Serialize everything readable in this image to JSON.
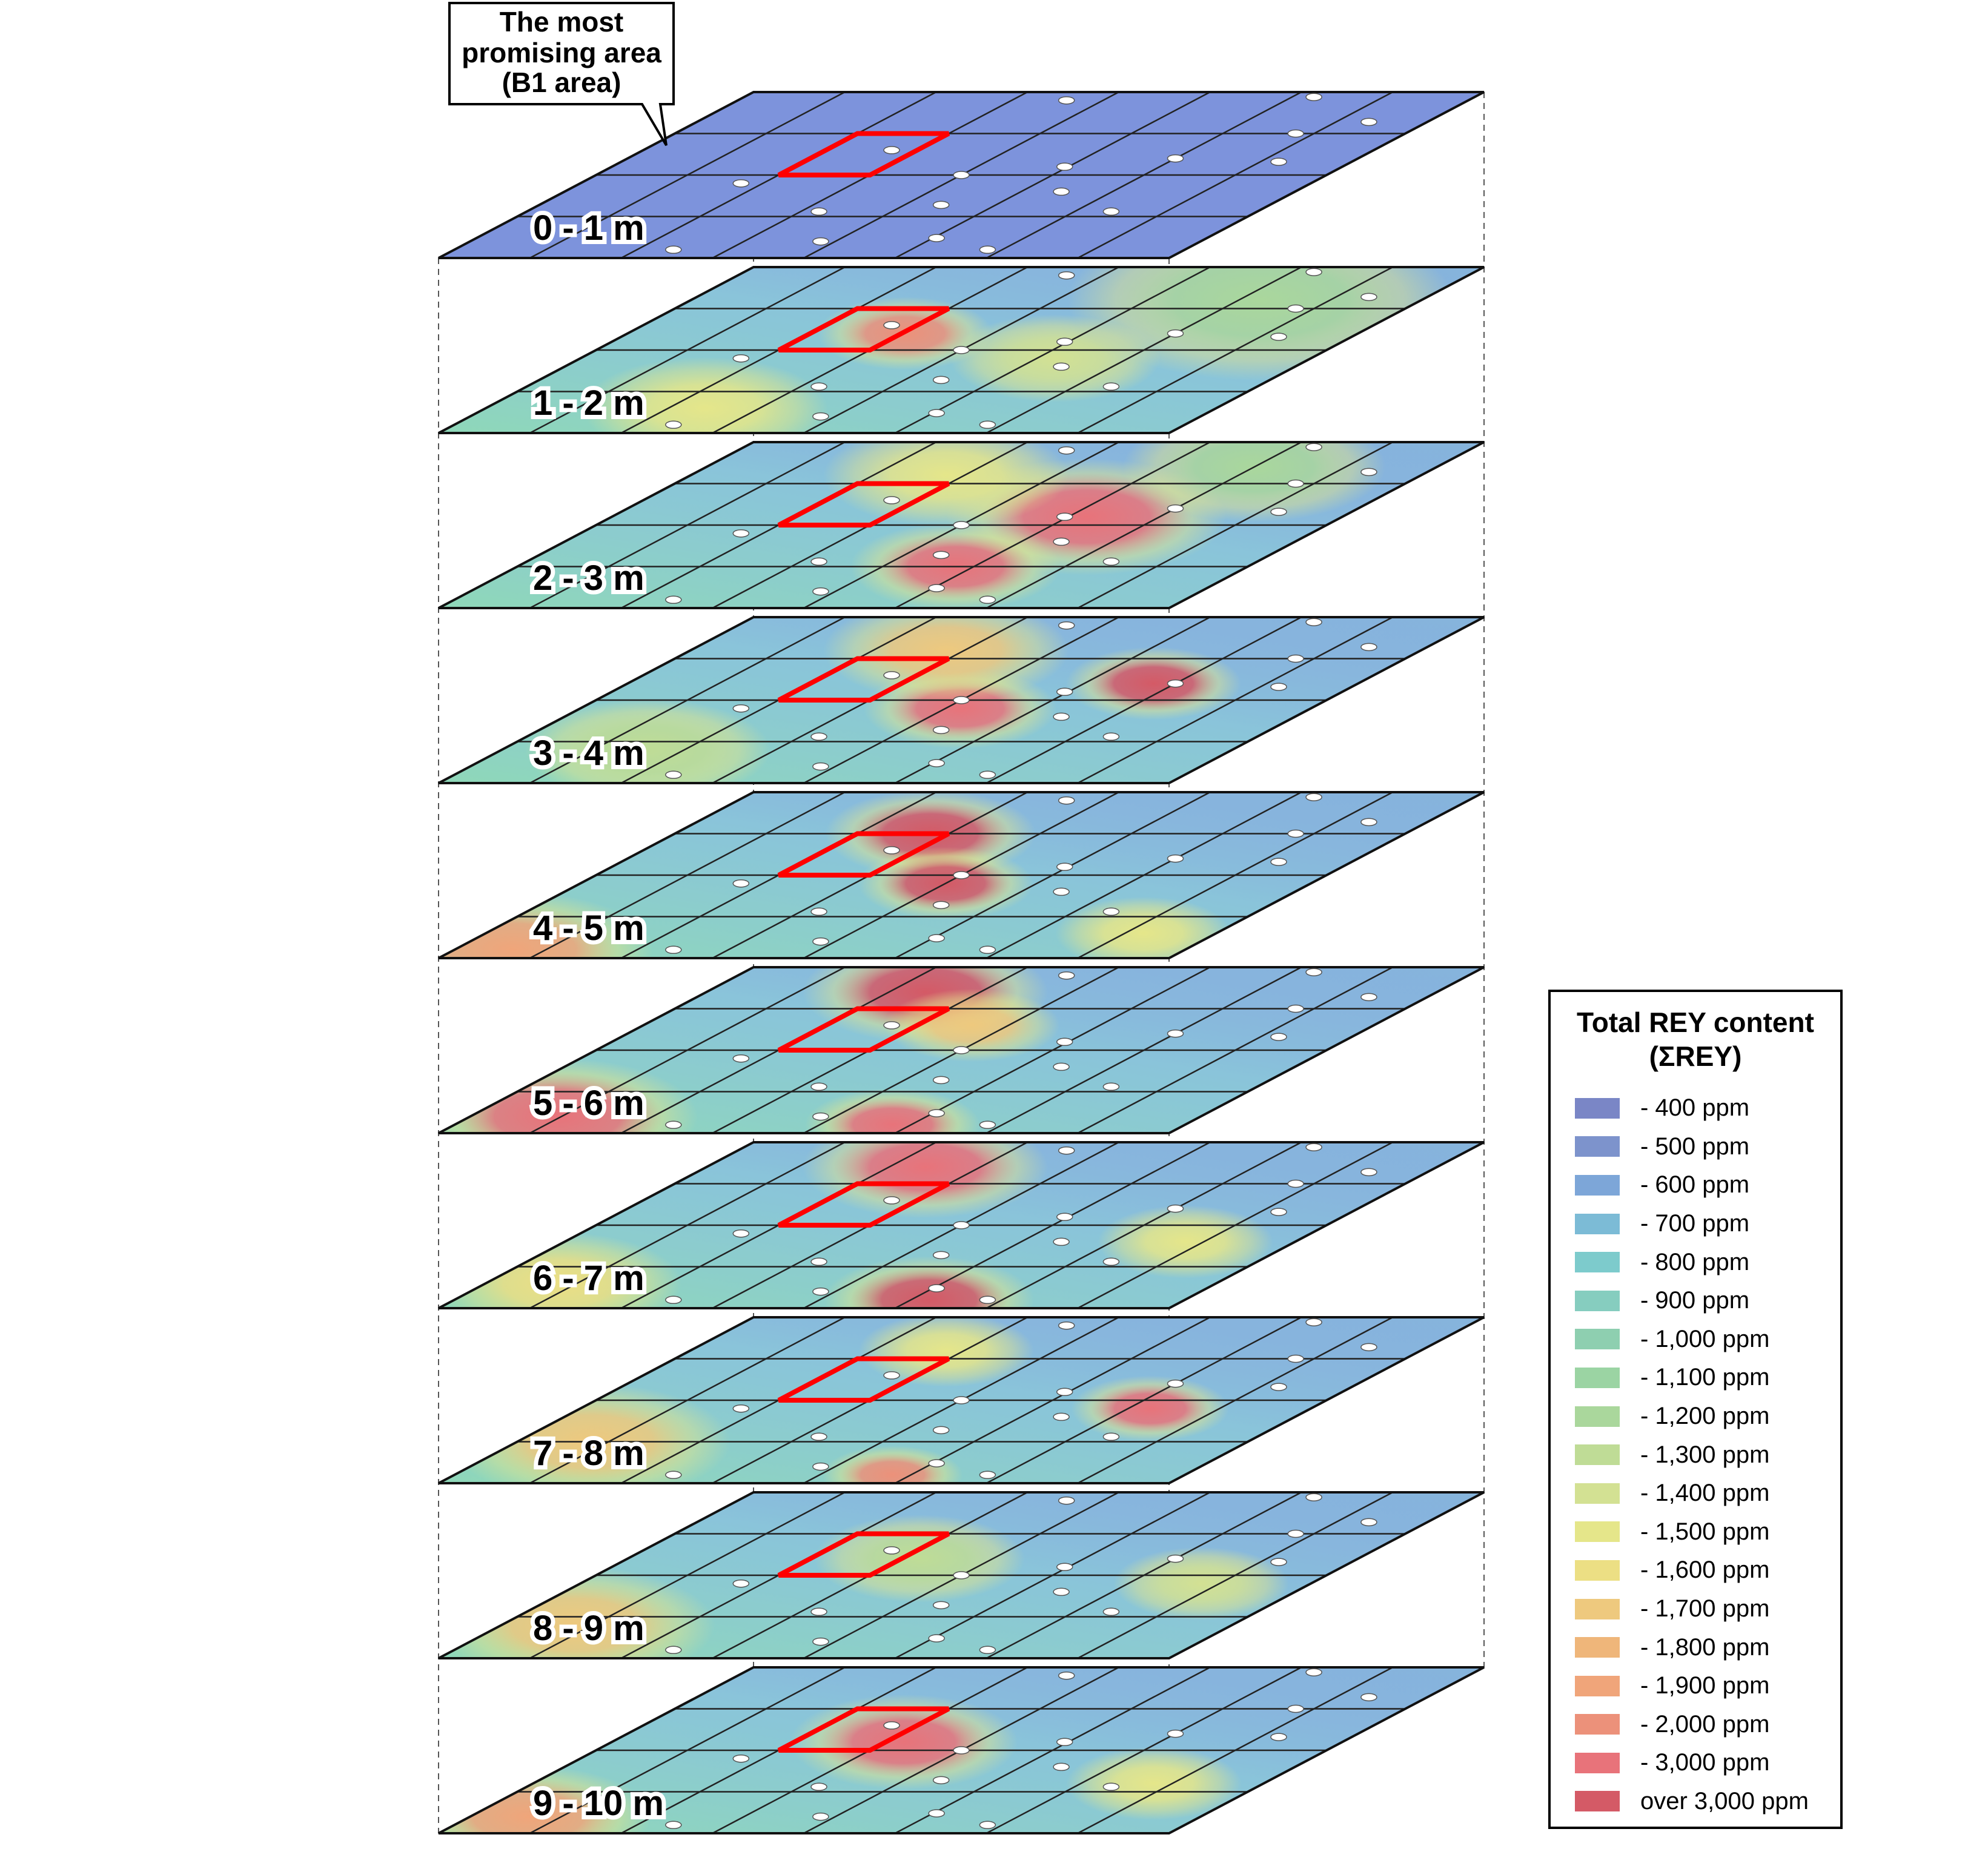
{
  "callout": {
    "lines": [
      "The most",
      "promising area",
      "(B1 area)"
    ]
  },
  "layers": [
    {
      "label": "0 - 1 m",
      "hotspots": []
    },
    {
      "label": "1 - 2 m",
      "hotspots": [
        {
          "u": 0.78,
          "v": 0.2,
          "ppm": 1150,
          "r": 0.22
        },
        {
          "u": 0.38,
          "v": 0.4,
          "ppm": 1950,
          "r": 0.1
        },
        {
          "u": 0.3,
          "v": 0.85,
          "ppm": 1450,
          "r": 0.14
        },
        {
          "u": 0.65,
          "v": 0.55,
          "ppm": 1350,
          "r": 0.12
        }
      ]
    },
    {
      "label": "2 - 3 m",
      "hotspots": [
        {
          "u": 0.65,
          "v": 0.45,
          "ppm": 3000,
          "r": 0.16
        },
        {
          "u": 0.6,
          "v": 0.75,
          "ppm": 2600,
          "r": 0.12
        },
        {
          "u": 0.35,
          "v": 0.2,
          "ppm": 1500,
          "r": 0.14
        },
        {
          "u": 0.75,
          "v": 0.15,
          "ppm": 1200,
          "r": 0.15
        }
      ]
    },
    {
      "label": "3 - 4 m",
      "hotspots": [
        {
          "u": 0.52,
          "v": 0.55,
          "ppm": 3000,
          "r": 0.11
        },
        {
          "u": 0.72,
          "v": 0.4,
          "ppm": 3200,
          "r": 0.1
        },
        {
          "u": 0.35,
          "v": 0.2,
          "ppm": 1700,
          "r": 0.14
        },
        {
          "u": 0.2,
          "v": 0.8,
          "ppm": 1300,
          "r": 0.14
        }
      ]
    },
    {
      "label": "4 - 5 m",
      "hotspots": [
        {
          "u": 0.35,
          "v": 0.25,
          "ppm": 3300,
          "r": 0.12
        },
        {
          "u": 0.5,
          "v": 0.55,
          "ppm": 3100,
          "r": 0.1
        },
        {
          "u": 0.08,
          "v": 0.95,
          "ppm": 1850,
          "r": 0.16
        },
        {
          "u": 0.9,
          "v": 0.85,
          "ppm": 1500,
          "r": 0.1
        }
      ]
    },
    {
      "label": "5 - 6 m",
      "hotspots": [
        {
          "u": 0.3,
          "v": 0.15,
          "ppm": 3400,
          "r": 0.14
        },
        {
          "u": 0.12,
          "v": 0.9,
          "ppm": 2600,
          "r": 0.16
        },
        {
          "u": 0.6,
          "v": 0.95,
          "ppm": 2200,
          "r": 0.1
        },
        {
          "u": 0.45,
          "v": 0.35,
          "ppm": 1700,
          "r": 0.1
        }
      ]
    },
    {
      "label": "6 - 7 m",
      "hotspots": [
        {
          "u": 0.3,
          "v": 0.15,
          "ppm": 2800,
          "r": 0.14
        },
        {
          "u": 0.65,
          "v": 0.95,
          "ppm": 3200,
          "r": 0.12
        },
        {
          "u": 0.1,
          "v": 0.85,
          "ppm": 1600,
          "r": 0.14
        },
        {
          "u": 0.85,
          "v": 0.6,
          "ppm": 1500,
          "r": 0.1
        }
      ]
    },
    {
      "label": "7 - 8 m",
      "hotspots": [
        {
          "u": 0.78,
          "v": 0.55,
          "ppm": 2800,
          "r": 0.09
        },
        {
          "u": 0.1,
          "v": 0.75,
          "ppm": 1700,
          "r": 0.16
        },
        {
          "u": 0.6,
          "v": 0.95,
          "ppm": 2000,
          "r": 0.08
        },
        {
          "u": 0.35,
          "v": 0.2,
          "ppm": 1450,
          "r": 0.1
        }
      ]
    },
    {
      "label": "8 - 9 m",
      "hotspots": [
        {
          "u": 0.1,
          "v": 0.8,
          "ppm": 1650,
          "r": 0.16
        },
        {
          "u": 0.4,
          "v": 0.4,
          "ppm": 1300,
          "r": 0.12
        },
        {
          "u": 0.85,
          "v": 0.55,
          "ppm": 1400,
          "r": 0.1
        }
      ]
    },
    {
      "label": "9 - 10 m",
      "hotspots": [
        {
          "u": 0.4,
          "v": 0.45,
          "ppm": 3000,
          "r": 0.13
        },
        {
          "u": 0.08,
          "v": 0.9,
          "ppm": 1900,
          "r": 0.14
        },
        {
          "u": 0.85,
          "v": 0.7,
          "ppm": 1500,
          "r": 0.1
        }
      ]
    }
  ],
  "legend": {
    "title_line1": "Total REY content",
    "title_line2": "(ΣREY)",
    "items": [
      {
        "label": "- 400 ppm",
        "max": 400,
        "color": "#7a86c6"
      },
      {
        "label": "- 500 ppm",
        "max": 500,
        "color": "#7d93cc"
      },
      {
        "label": "- 600 ppm",
        "max": 600,
        "color": "#7da6d8"
      },
      {
        "label": "- 700 ppm",
        "max": 700,
        "color": "#7cbbd6"
      },
      {
        "label": "- 800 ppm",
        "max": 800,
        "color": "#7dcbcc"
      },
      {
        "label": "- 900 ppm",
        "max": 900,
        "color": "#86cdbf"
      },
      {
        "label": "- 1,000 ppm",
        "max": 1000,
        "color": "#8ecfb0"
      },
      {
        "label": "- 1,100 ppm",
        "max": 1100,
        "color": "#9bd4a3"
      },
      {
        "label": "- 1,200 ppm",
        "max": 1200,
        "color": "#aad79c"
      },
      {
        "label": "- 1,300 ppm",
        "max": 1300,
        "color": "#bfdc96"
      },
      {
        "label": "- 1,400 ppm",
        "max": 1400,
        "color": "#d3e193"
      },
      {
        "label": "- 1,500 ppm",
        "max": 1500,
        "color": "#e5e68a"
      },
      {
        "label": "- 1,600 ppm",
        "max": 1600,
        "color": "#ecdf84"
      },
      {
        "label": "- 1,700 ppm",
        "max": 1700,
        "color": "#eec97e"
      },
      {
        "label": "- 1,800 ppm",
        "max": 1800,
        "color": "#efb67a"
      },
      {
        "label": "- 1,900 ppm",
        "max": 1900,
        "color": "#f0a57a"
      },
      {
        "label": "- 2,000 ppm",
        "max": 2000,
        "color": "#ec917a"
      },
      {
        "label": "- 3,000 ppm",
        "max": 3000,
        "color": "#e8737a"
      },
      {
        "label": "over 3,000 ppm",
        "max": 99999,
        "color": "#d45a66"
      }
    ]
  }
}
